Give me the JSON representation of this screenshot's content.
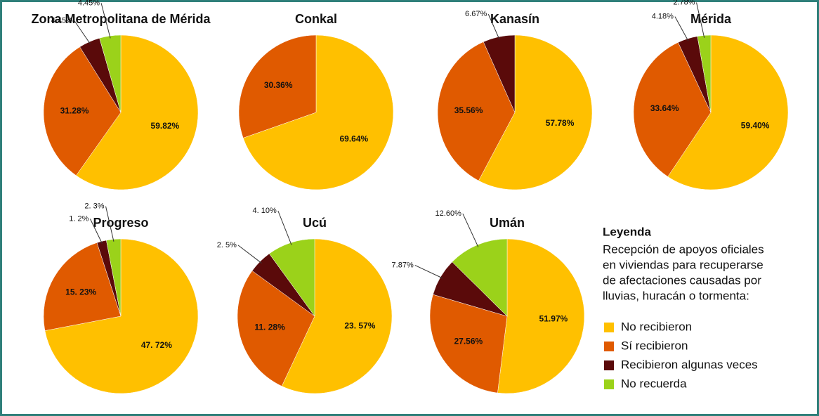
{
  "chart_data": [
    {
      "type": "pie",
      "title": "Zona Metropolitana de Mérida",
      "values": [
        59.82,
        31.28,
        4.45,
        4.45
      ],
      "value_labels": [
        "59.82%",
        "31.28%",
        "4.45%",
        "4.45%"
      ]
    },
    {
      "type": "pie",
      "title": "Conkal",
      "values": [
        69.64,
        30.36
      ],
      "value_labels": [
        "69.64%",
        "30.36%"
      ]
    },
    {
      "type": "pie",
      "title": "Kanasín",
      "values": [
        57.78,
        35.56,
        6.67
      ],
      "value_labels": [
        "57.78%",
        "35.56%",
        "6.67%"
      ]
    },
    {
      "type": "pie",
      "title": "Mérida",
      "values": [
        59.4,
        33.64,
        4.18,
        2.78
      ],
      "value_labels": [
        "59.40%",
        "33.64%",
        "4.18%",
        "2.78%"
      ]
    },
    {
      "type": "pie",
      "title": "Progreso",
      "values": [
        72,
        23,
        2,
        3
      ],
      "value_labels": [
        "47. 72%",
        "15. 23%",
        "1. 2%",
        "2. 3%"
      ]
    },
    {
      "type": "pie",
      "title": "Ucú",
      "values": [
        57,
        28,
        5,
        10
      ],
      "value_labels": [
        "23. 57%",
        "11. 28%",
        "2. 5%",
        "4. 10%"
      ]
    },
    {
      "type": "pie",
      "title": "Umán",
      "values": [
        51.97,
        27.56,
        7.87,
        12.6
      ],
      "value_labels": [
        "51.97%",
        "27.56%",
        "7.87%",
        "12.60%"
      ]
    }
  ],
  "legend": {
    "title": "Leyenda",
    "description": [
      "Recepción de apoyos oficiales",
      "en viviendas para recuperarse",
      "de afectaciones causadas por",
      "lluvias, huracán o tormenta:"
    ],
    "categories": [
      "No recibieron",
      "Sí recibieron",
      "Recibieron algunas veces",
      "No recuerda"
    ],
    "colors": [
      "#ffc000",
      "#e05a00",
      "#5a0a0a",
      "#9bd21a"
    ]
  }
}
